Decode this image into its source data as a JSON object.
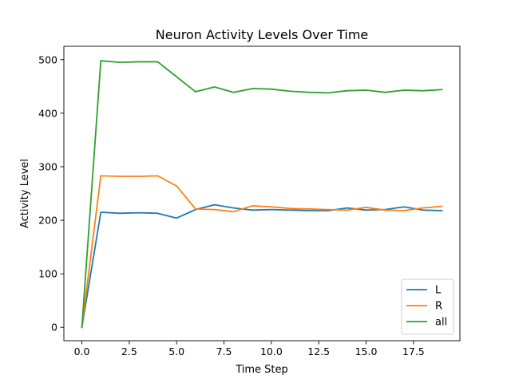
{
  "chart_data": {
    "type": "line",
    "title": "Neuron Activity Levels Over Time",
    "xlabel": "Time Step",
    "ylabel": "Activity Level",
    "xlim": [
      -0.95,
      19.95
    ],
    "ylim": [
      -25,
      525
    ],
    "xticks": [
      0,
      2.5,
      5,
      7.5,
      10,
      12.5,
      15,
      17.5
    ],
    "xtick_labels": [
      "0.0",
      "2.5",
      "5.0",
      "7.5",
      "10.0",
      "12.5",
      "15.0",
      "17.5"
    ],
    "yticks": [
      0,
      100,
      200,
      300,
      400,
      500
    ],
    "ytick_labels": [
      "0",
      "100",
      "200",
      "300",
      "400",
      "500"
    ],
    "grid": false,
    "legend_position": "lower-right",
    "x": [
      0,
      1,
      2,
      3,
      4,
      5,
      6,
      7,
      8,
      9,
      10,
      11,
      12,
      13,
      14,
      15,
      16,
      17,
      18,
      19
    ],
    "series": [
      {
        "name": "L",
        "color": "#1f77b4",
        "values": [
          0,
          215,
          213,
          214,
          213,
          204,
          220,
          229,
          223,
          219,
          220,
          219,
          218,
          218,
          223,
          219,
          220,
          225,
          219,
          218
        ]
      },
      {
        "name": "R",
        "color": "#ff7f0e",
        "values": [
          0,
          283,
          282,
          282,
          283,
          264,
          221,
          220,
          216,
          227,
          225,
          222,
          221,
          220,
          219,
          224,
          219,
          218,
          223,
          226
        ]
      },
      {
        "name": "all",
        "color": "#2ca02c",
        "values": [
          0,
          498,
          495,
          496,
          496,
          468,
          440,
          449,
          439,
          446,
          445,
          441,
          439,
          438,
          442,
          443,
          439,
          443,
          442,
          444
        ]
      }
    ]
  }
}
